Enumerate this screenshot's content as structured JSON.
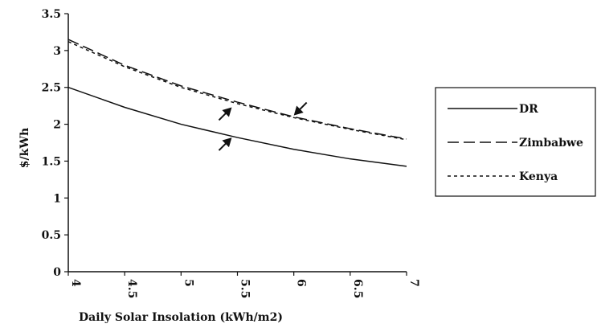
{
  "chart_data": {
    "type": "line",
    "xlabel": "Daily Solar Insolation (kWh/m2)",
    "ylabel": "$/kWh",
    "xlim": [
      4,
      7
    ],
    "ylim": [
      0,
      3.5
    ],
    "x_ticks": [
      "4",
      "4.5",
      "5",
      "5.5",
      "6",
      "6.5",
      "7"
    ],
    "y_ticks": [
      "0",
      "0.5",
      "1",
      "1.5",
      "2",
      "2.5",
      "3",
      "3.5"
    ],
    "grid": false,
    "legend_position": "right",
    "series": [
      {
        "name": "DR",
        "style": "solid",
        "color": "#111111",
        "x": [
          4,
          4.5,
          5,
          5.5,
          6,
          6.5,
          7
        ],
        "y": [
          2.5,
          2.23,
          2.0,
          1.82,
          1.66,
          1.53,
          1.43
        ]
      },
      {
        "name": "Zimbabwe",
        "style": "dashed",
        "color": "#111111",
        "x": [
          4,
          4.5,
          5,
          5.5,
          6,
          6.5,
          7
        ],
        "y": [
          3.15,
          2.8,
          2.52,
          2.3,
          2.1,
          1.94,
          1.8
        ]
      },
      {
        "name": "Kenya",
        "style": "dotted",
        "color": "#111111",
        "x": [
          4,
          4.5,
          5,
          5.5,
          6,
          6.5,
          7
        ],
        "y": [
          3.12,
          2.78,
          2.5,
          2.28,
          2.09,
          1.93,
          1.79
        ]
      }
    ],
    "annotations": [
      {
        "type": "arrow",
        "x": 5.45,
        "y": 2.23,
        "direction": "up-right"
      },
      {
        "type": "arrow",
        "x": 5.45,
        "y": 1.82,
        "direction": "up-right"
      },
      {
        "type": "arrow",
        "x": 6.0,
        "y": 2.12,
        "direction": "down-left"
      }
    ]
  }
}
